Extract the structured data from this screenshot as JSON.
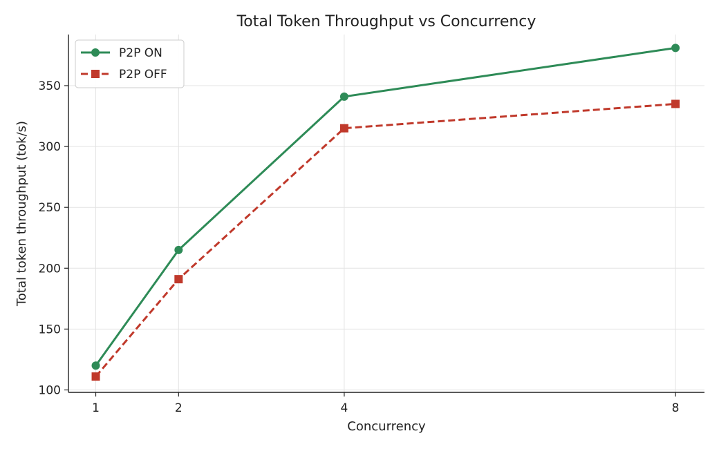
{
  "chart_data": {
    "type": "line",
    "title": "Total Token Throughput vs Concurrency",
    "xlabel": "Concurrency",
    "ylabel": "Total token throughput (tok/s)",
    "x": [
      1,
      2,
      4,
      8
    ],
    "xticks": [
      "1",
      "2",
      "4",
      "8"
    ],
    "yticks": [
      "100",
      "150",
      "200",
      "250",
      "300",
      "350"
    ],
    "ylim": [
      98,
      392
    ],
    "xlim": [
      0.67,
      8.35
    ],
    "grid": true,
    "legend_position": "top-left",
    "series": [
      {
        "name": "P2P ON",
        "values": [
          120,
          215,
          341,
          381
        ],
        "color": "#2e8b57",
        "marker": "circle",
        "linestyle": "solid"
      },
      {
        "name": "P2P OFF",
        "values": [
          111,
          191,
          315,
          335
        ],
        "color": "#c0392b",
        "marker": "square",
        "linestyle": "dashed"
      }
    ]
  }
}
